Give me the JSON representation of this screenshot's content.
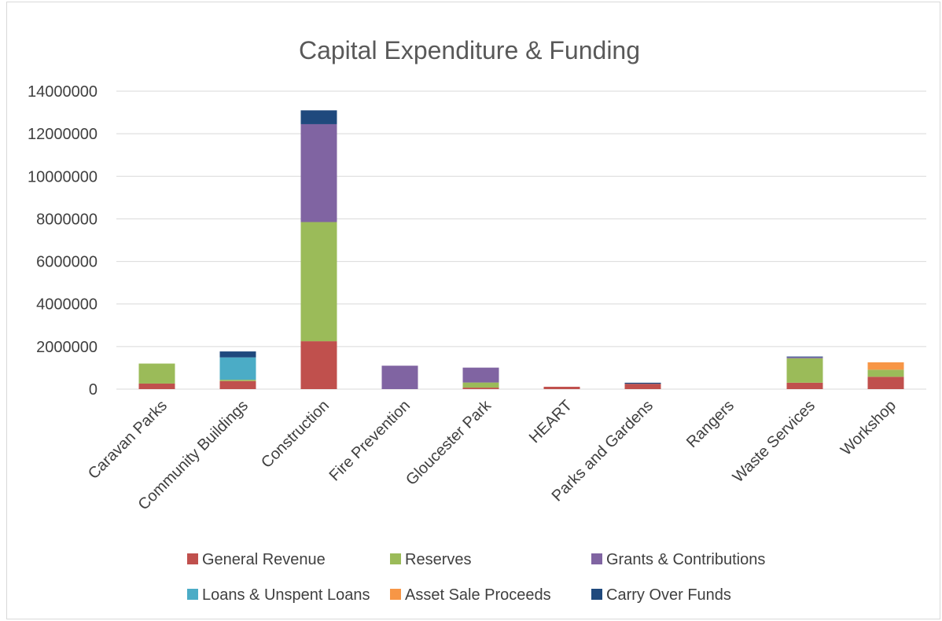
{
  "chart_data": {
    "type": "bar",
    "stacked": true,
    "title": "Capital Expenditure & Funding",
    "xlabel": "",
    "ylabel": "",
    "ylim": [
      0,
      14000000
    ],
    "yticks": [
      0,
      2000000,
      4000000,
      6000000,
      8000000,
      10000000,
      12000000,
      14000000
    ],
    "ytick_labels": [
      "0",
      "2000000",
      "4000000",
      "6000000",
      "8000000",
      "10000000",
      "12000000",
      "14000000"
    ],
    "grid": true,
    "legend_position": "bottom",
    "categories": [
      "Caravan Parks",
      "Community Buildings",
      "Construction",
      "Fire Prevention",
      "Gloucester Park",
      "HEART",
      "Parks and Gardens",
      "Rangers",
      "Waste Services",
      "Workshop"
    ],
    "series": [
      {
        "name": "General Revenue",
        "color": "#c0504d",
        "values": [
          260000,
          380000,
          2250000,
          0,
          70000,
          110000,
          250000,
          0,
          300000,
          580000
        ]
      },
      {
        "name": "Reserves",
        "color": "#9bbb59",
        "values": [
          940000,
          60000,
          5600000,
          0,
          240000,
          0,
          0,
          0,
          1150000,
          330000
        ]
      },
      {
        "name": "Grants & Contributions",
        "color": "#8064a2",
        "values": [
          0,
          0,
          4600000,
          1100000,
          700000,
          0,
          0,
          0,
          50000,
          0
        ]
      },
      {
        "name": "Loans & Unspent Loans",
        "color": "#4bacc6",
        "values": [
          0,
          1050000,
          0,
          0,
          0,
          0,
          0,
          0,
          0,
          0
        ]
      },
      {
        "name": "Asset Sale Proceeds",
        "color": "#f79646",
        "values": [
          0,
          0,
          0,
          0,
          0,
          0,
          0,
          0,
          0,
          350000
        ]
      },
      {
        "name": "Carry Over Funds",
        "color": "#1f497d",
        "values": [
          0,
          280000,
          650000,
          0,
          0,
          0,
          50000,
          0,
          30000,
          0
        ]
      }
    ]
  }
}
